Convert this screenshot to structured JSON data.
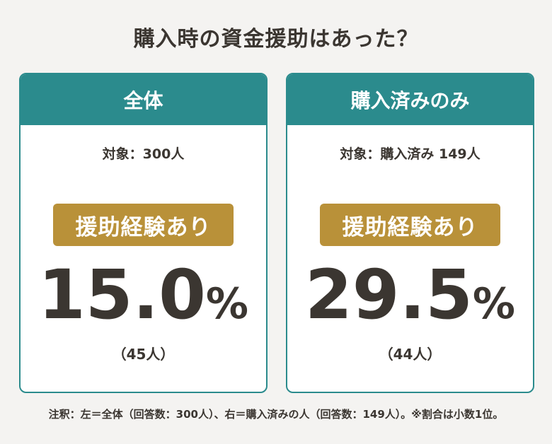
{
  "header": {
    "title": "購入時の資金援助はあった？"
  },
  "cards": [
    {
      "title": "全体",
      "target": "対象：300人",
      "badge": "援助経験あり",
      "value": "15.0%",
      "count": "（45人）"
    },
    {
      "title": "購入済みのみ",
      "target": "対象：購入済み 149人",
      "badge": "援助経験あり",
      "value": "29.5%",
      "count": "（44人）"
    }
  ],
  "footnote": "注釈：左＝全体（回答数：300人）、右＝購入済みの人（回答数：149人）。※割合は小数1位。"
}
